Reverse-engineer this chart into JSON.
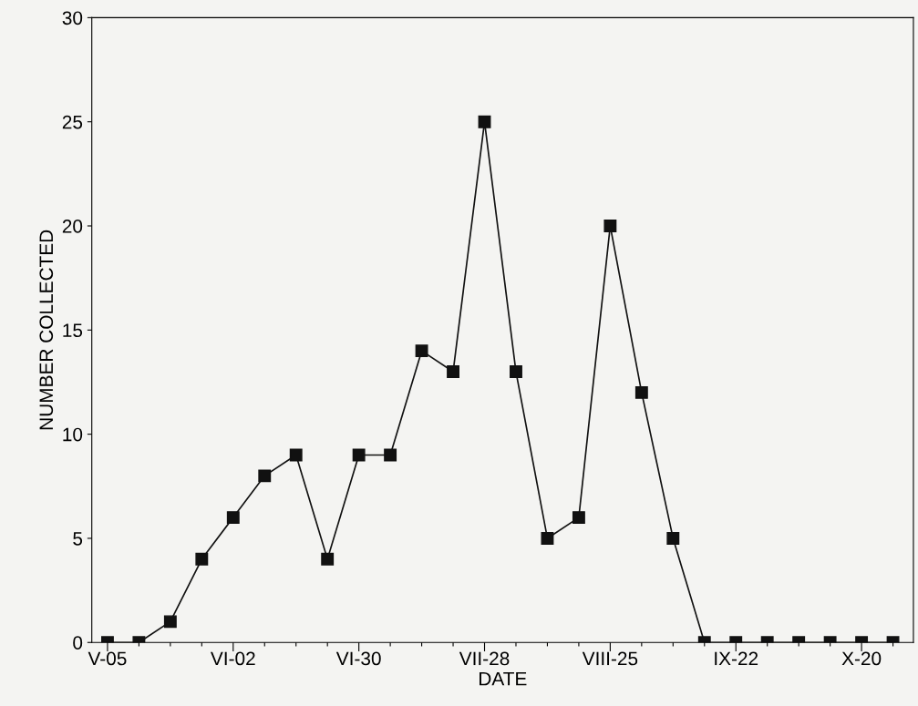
{
  "chart_data": {
    "type": "line",
    "xlabel": "DATE",
    "ylabel": "NUMBER COLLECTED",
    "categories": [
      "V-05",
      null,
      null,
      null,
      "VI-02",
      null,
      null,
      null,
      "VI-30",
      null,
      null,
      null,
      "VII-28",
      null,
      null,
      null,
      "VIII-25",
      null,
      null,
      null,
      "IX-22",
      null,
      null,
      null,
      "X-20",
      null
    ],
    "series": [
      {
        "color": "#111111",
        "values": [
          0,
          0,
          1,
          4,
          6,
          8,
          9,
          4,
          9,
          9,
          14,
          13,
          25,
          13,
          5,
          6,
          20,
          12,
          5,
          0,
          0,
          0,
          0,
          0,
          0,
          0
        ]
      }
    ],
    "ylim": [
      0,
      30
    ],
    "yticks": [
      0,
      5,
      10,
      15,
      20,
      25,
      30
    ],
    "marker": "square",
    "line_style": "solid",
    "grid": false,
    "legend": false
  }
}
